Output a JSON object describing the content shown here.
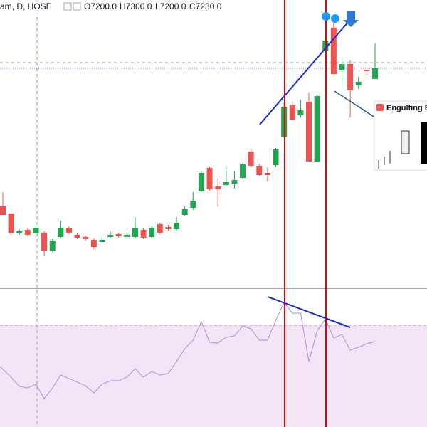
{
  "chart_data": {
    "type": "candlestick",
    "header": {
      "symbol": "am, D, HOSE",
      "open_label": "O7200.0",
      "high_label": "H7300.0",
      "low_label": "L7200.0",
      "close_label": "C7230.0"
    },
    "popup": "Engulfing Be",
    "up_color": "#1fa84f",
    "down_color": "#ef5350",
    "ylim": [
      6612,
      7422
    ],
    "open": [
      6842,
      6822,
      6766,
      6776,
      6766,
      6768,
      6718,
      6756,
      6782,
      6762,
      6756,
      6748,
      6742,
      6756,
      6764,
      6756,
      6756,
      6776,
      6756,
      6792,
      6784,
      6778,
      6818,
      6838,
      6886,
      6950,
      6898,
      6902,
      6906,
      6922,
      6996,
      6956,
      6936,
      6958,
      7038,
      7126,
      7098,
      7136,
      6968,
      7278,
      7344,
      7226,
      7242,
      7182,
      7226,
      7200
    ],
    "high": [
      6882,
      6822,
      6778,
      6782,
      6802,
      6772,
      6750,
      6802,
      6786,
      6766,
      6760,
      6752,
      6752,
      6772,
      6768,
      6770,
      6812,
      6782,
      6786,
      6796,
      6790,
      6812,
      6842,
      6882,
      6942,
      6954,
      6922,
      6952,
      6942,
      6964,
      7004,
      6962,
      6952,
      7006,
      7132,
      7136,
      7142,
      7162,
      7156,
      7312,
      7362,
      7262,
      7252,
      7206,
      7242,
      7300
    ],
    "low": [
      6818,
      6762,
      6762,
      6758,
      6762,
      6702,
      6714,
      6752,
      6764,
      6750,
      6746,
      6722,
      6738,
      6752,
      6754,
      6752,
      6752,
      6750,
      6752,
      6764,
      6774,
      6774,
      6814,
      6832,
      6882,
      6886,
      6842,
      6898,
      6892,
      6918,
      6952,
      6926,
      6912,
      6954,
      7034,
      7082,
      7092,
      6968,
      6968,
      7274,
      7212,
      7182,
      7092,
      7172,
      7212,
      7200
    ],
    "close": [
      6818,
      6768,
      6772,
      6762,
      6782,
      6718,
      6746,
      6782,
      6768,
      6754,
      6750,
      6728,
      6748,
      6762,
      6758,
      6762,
      6782,
      6754,
      6782,
      6768,
      6778,
      6796,
      6834,
      6858,
      6936,
      6890,
      6890,
      6910,
      6916,
      6960,
      6956,
      6930,
      6930,
      7002,
      7122,
      7086,
      7112,
      6968,
      7152,
      7308,
      7214,
      7242,
      7168,
      7192,
      7222,
      7230
    ],
    "price_line": 7230,
    "rsi": {
      "color": "#b39ddb",
      "band_color": "#f3e5f5",
      "ylim": [
        34.25,
        83
      ],
      "band": [
        30,
        70
      ],
      "values": [
        55.5,
        51.75,
        48.5,
        48,
        49.25,
        44.25,
        48,
        52.5,
        51.25,
        50,
        48.75,
        46.25,
        49.25,
        50.5,
        50.5,
        51.75,
        54.75,
        51.75,
        53.75,
        52.5,
        53,
        57.25,
        61.75,
        64.75,
        71.25,
        64,
        63.75,
        65.75,
        66.25,
        69.75,
        68.75,
        64.75,
        64.75,
        71.75,
        78,
        74.25,
        74.25,
        57.25,
        68,
        72.25,
        65.5,
        66.75,
        61.25,
        62.25,
        63.5,
        64.25
      ]
    }
  }
}
